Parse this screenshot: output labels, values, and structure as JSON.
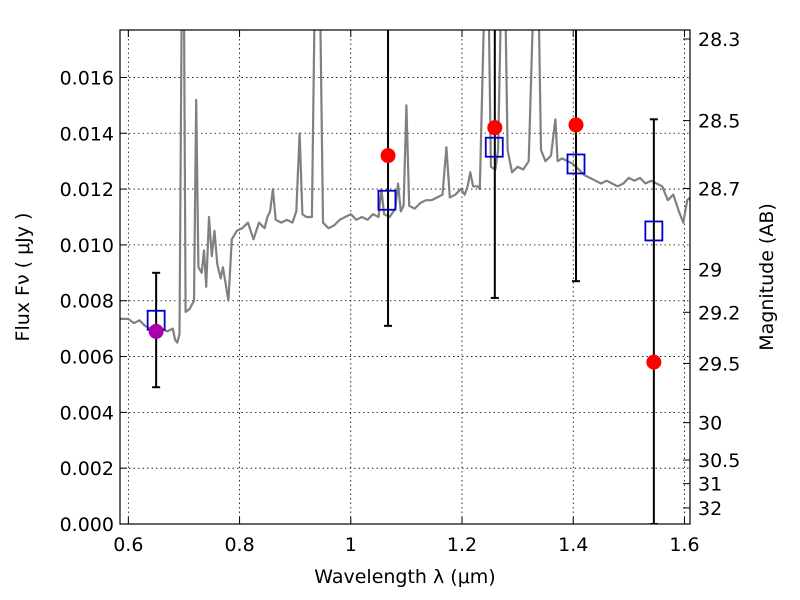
{
  "chart_data": {
    "type": "scatter",
    "xlabel": "Wavelength  λ (μm)",
    "ylabel_left": "Flux  Fν  ( μJy )",
    "ylabel_right": "Magnitude (AB)",
    "xlim": [
      0.585,
      1.61
    ],
    "ylim": [
      0.0,
      0.0177
    ],
    "grid": true,
    "x_ticks": [
      {
        "value": 0.6,
        "label": "0.6"
      },
      {
        "value": 0.8,
        "label": "0.8"
      },
      {
        "value": 1.0,
        "label": "1"
      },
      {
        "value": 1.2,
        "label": "1.2"
      },
      {
        "value": 1.4,
        "label": "1.4"
      },
      {
        "value": 1.6,
        "label": "1.6"
      }
    ],
    "y_ticks": [
      {
        "value": 0.0,
        "label": "0.000"
      },
      {
        "value": 0.002,
        "label": "0.002"
      },
      {
        "value": 0.004,
        "label": "0.004"
      },
      {
        "value": 0.006,
        "label": "0.006"
      },
      {
        "value": 0.008,
        "label": "0.008"
      },
      {
        "value": 0.01,
        "label": "0.010"
      },
      {
        "value": 0.012,
        "label": "0.012"
      },
      {
        "value": 0.014,
        "label": "0.014"
      },
      {
        "value": 0.016,
        "label": "0.016"
      }
    ],
    "mag_ticks": [
      {
        "mag": 28.3,
        "label": "28.3"
      },
      {
        "mag": 28.5,
        "label": "28.5"
      },
      {
        "mag": 28.7,
        "label": "28.7"
      },
      {
        "mag": 29.0,
        "label": "29"
      },
      {
        "mag": 29.2,
        "label": "29.2"
      },
      {
        "mag": 29.5,
        "label": "29.5"
      },
      {
        "mag": 30.0,
        "label": "30"
      },
      {
        "mag": 30.5,
        "label": "30.5"
      },
      {
        "mag": 31.0,
        "label": "31"
      },
      {
        "mag": 32.0,
        "label": "32"
      }
    ],
    "model_spectrum": {
      "color": "#808080",
      "points": [
        [
          0.585,
          0.00735
        ],
        [
          0.6,
          0.00735
        ],
        [
          0.61,
          0.0072
        ],
        [
          0.62,
          0.0073
        ],
        [
          0.63,
          0.0071
        ],
        [
          0.64,
          0.007
        ],
        [
          0.65,
          0.0071
        ],
        [
          0.66,
          0.007
        ],
        [
          0.67,
          0.0069
        ],
        [
          0.68,
          0.007
        ],
        [
          0.684,
          0.0066
        ],
        [
          0.688,
          0.0065
        ],
        [
          0.692,
          0.0068
        ],
        [
          0.696,
          0.0185
        ],
        [
          0.7,
          0.0185
        ],
        [
          0.703,
          0.0076
        ],
        [
          0.71,
          0.0077
        ],
        [
          0.718,
          0.008
        ],
        [
          0.722,
          0.0152
        ],
        [
          0.726,
          0.0092
        ],
        [
          0.732,
          0.009
        ],
        [
          0.736,
          0.0098
        ],
        [
          0.74,
          0.0085
        ],
        [
          0.745,
          0.011
        ],
        [
          0.75,
          0.0096
        ],
        [
          0.755,
          0.0105
        ],
        [
          0.76,
          0.0093
        ],
        [
          0.766,
          0.0088
        ],
        [
          0.77,
          0.0092
        ],
        [
          0.775,
          0.0086
        ],
        [
          0.78,
          0.008
        ],
        [
          0.786,
          0.0102
        ],
        [
          0.795,
          0.0105
        ],
        [
          0.805,
          0.0106
        ],
        [
          0.815,
          0.0108
        ],
        [
          0.825,
          0.0102
        ],
        [
          0.835,
          0.0108
        ],
        [
          0.845,
          0.0106
        ],
        [
          0.85,
          0.011
        ],
        [
          0.855,
          0.0112
        ],
        [
          0.86,
          0.012
        ],
        [
          0.865,
          0.0109
        ],
        [
          0.875,
          0.0108
        ],
        [
          0.885,
          0.0109
        ],
        [
          0.895,
          0.0108
        ],
        [
          0.902,
          0.0112
        ],
        [
          0.908,
          0.014
        ],
        [
          0.913,
          0.0111
        ],
        [
          0.92,
          0.011
        ],
        [
          0.93,
          0.011
        ],
        [
          0.935,
          0.0185
        ],
        [
          0.945,
          0.0185
        ],
        [
          0.95,
          0.0108
        ],
        [
          0.96,
          0.0106
        ],
        [
          0.97,
          0.0107
        ],
        [
          0.98,
          0.0109
        ],
        [
          0.99,
          0.011
        ],
        [
          1.0,
          0.0111
        ],
        [
          1.01,
          0.0109
        ],
        [
          1.02,
          0.011
        ],
        [
          1.03,
          0.0109
        ],
        [
          1.04,
          0.0111
        ],
        [
          1.05,
          0.011
        ],
        [
          1.055,
          0.012
        ],
        [
          1.06,
          0.0111
        ],
        [
          1.07,
          0.011
        ],
        [
          1.08,
          0.0113
        ],
        [
          1.085,
          0.0122
        ],
        [
          1.09,
          0.0112
        ],
        [
          1.095,
          0.0114
        ],
        [
          1.1,
          0.015
        ],
        [
          1.105,
          0.0114
        ],
        [
          1.115,
          0.0113
        ],
        [
          1.125,
          0.0115
        ],
        [
          1.135,
          0.0116
        ],
        [
          1.145,
          0.0116
        ],
        [
          1.155,
          0.0117
        ],
        [
          1.165,
          0.0118
        ],
        [
          1.172,
          0.0135
        ],
        [
          1.178,
          0.0117
        ],
        [
          1.188,
          0.0118
        ],
        [
          1.198,
          0.012
        ],
        [
          1.205,
          0.0118
        ],
        [
          1.21,
          0.0121
        ],
        [
          1.215,
          0.0126
        ],
        [
          1.22,
          0.0121
        ],
        [
          1.228,
          0.0121
        ],
        [
          1.232,
          0.012
        ],
        [
          1.24,
          0.0185
        ],
        [
          1.248,
          0.0185
        ],
        [
          1.252,
          0.0128
        ],
        [
          1.26,
          0.0127
        ],
        [
          1.265,
          0.0134
        ],
        [
          1.27,
          0.0185
        ],
        [
          1.278,
          0.0185
        ],
        [
          1.282,
          0.0134
        ],
        [
          1.29,
          0.0126
        ],
        [
          1.3,
          0.0128
        ],
        [
          1.31,
          0.0127
        ],
        [
          1.32,
          0.013
        ],
        [
          1.328,
          0.0185
        ],
        [
          1.338,
          0.0185
        ],
        [
          1.342,
          0.0134
        ],
        [
          1.35,
          0.013
        ],
        [
          1.36,
          0.0132
        ],
        [
          1.368,
          0.0145
        ],
        [
          1.372,
          0.013
        ],
        [
          1.38,
          0.0131
        ],
        [
          1.39,
          0.013
        ],
        [
          1.4,
          0.0129
        ],
        [
          1.41,
          0.0127
        ],
        [
          1.42,
          0.0125
        ],
        [
          1.43,
          0.0124
        ],
        [
          1.44,
          0.0123
        ],
        [
          1.45,
          0.0122
        ],
        [
          1.46,
          0.0123
        ],
        [
          1.47,
          0.0122
        ],
        [
          1.48,
          0.0121
        ],
        [
          1.49,
          0.0122
        ],
        [
          1.5,
          0.0124
        ],
        [
          1.51,
          0.0123
        ],
        [
          1.52,
          0.0124
        ],
        [
          1.53,
          0.0122
        ],
        [
          1.54,
          0.0123
        ],
        [
          1.55,
          0.0122
        ],
        [
          1.56,
          0.0121
        ],
        [
          1.57,
          0.0116
        ],
        [
          1.58,
          0.0118
        ],
        [
          1.59,
          0.0112
        ],
        [
          1.598,
          0.0108
        ],
        [
          1.605,
          0.0116
        ],
        [
          1.61,
          0.0117
        ]
      ]
    },
    "model_points": {
      "color": "#0000cc",
      "points": [
        {
          "x": 0.65,
          "y": 0.0073
        },
        {
          "x": 1.065,
          "y": 0.0116
        },
        {
          "x": 1.258,
          "y": 0.0135
        },
        {
          "x": 1.405,
          "y": 0.0129
        },
        {
          "x": 1.545,
          "y": 0.0105
        }
      ]
    },
    "observed_points": [
      {
        "x": 0.65,
        "y": 0.0069,
        "err_low": 0.0049,
        "err_high": 0.009,
        "color": "#aa00aa"
      },
      {
        "x": 1.067,
        "y": 0.0132,
        "err_low": 0.0071,
        "err_high": 0.0179,
        "color": "#ff0000"
      },
      {
        "x": 1.259,
        "y": 0.0142,
        "err_low": 0.0081,
        "err_high": 0.0179,
        "color": "#ff0000"
      },
      {
        "x": 1.405,
        "y": 0.0143,
        "err_low": 0.0087,
        "err_high": 0.0179,
        "color": "#ff0000"
      },
      {
        "x": 1.545,
        "y": 0.0058,
        "err_low": 0.0,
        "err_high": 0.0145,
        "color": "#ff0000"
      }
    ]
  }
}
